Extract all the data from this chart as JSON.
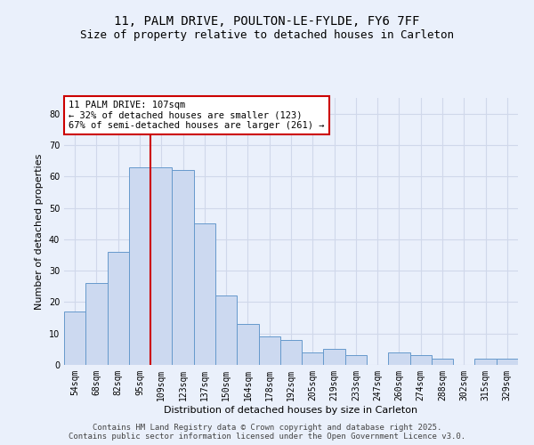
{
  "title": "11, PALM DRIVE, POULTON-LE-FYLDE, FY6 7FF",
  "subtitle": "Size of property relative to detached houses in Carleton",
  "xlabel": "Distribution of detached houses by size in Carleton",
  "ylabel": "Number of detached properties",
  "categories": [
    "54sqm",
    "68sqm",
    "82sqm",
    "95sqm",
    "109sqm",
    "123sqm",
    "137sqm",
    "150sqm",
    "164sqm",
    "178sqm",
    "192sqm",
    "205sqm",
    "219sqm",
    "233sqm",
    "247sqm",
    "260sqm",
    "274sqm",
    "288sqm",
    "302sqm",
    "315sqm",
    "329sqm"
  ],
  "values": [
    17,
    26,
    36,
    63,
    63,
    62,
    45,
    22,
    13,
    9,
    8,
    4,
    5,
    3,
    0,
    4,
    3,
    2,
    0,
    2,
    2
  ],
  "bar_color": "#ccd9f0",
  "bar_edge_color": "#6699cc",
  "vline_x_index": 4,
  "vline_color": "#cc0000",
  "annotation_line1": "11 PALM DRIVE: 107sqm",
  "annotation_line2": "← 32% of detached houses are smaller (123)",
  "annotation_line3": "67% of semi-detached houses are larger (261) →",
  "annotation_box_edgecolor": "#cc0000",
  "ylim": [
    0,
    85
  ],
  "yticks": [
    0,
    10,
    20,
    30,
    40,
    50,
    60,
    70,
    80
  ],
  "background_color": "#eaf0fb",
  "grid_color": "#d0d8ea",
  "title_fontsize": 10,
  "subtitle_fontsize": 9,
  "axis_label_fontsize": 8,
  "tick_fontsize": 7,
  "annotation_fontsize": 7.5,
  "footer_fontsize": 6.5,
  "footer_line1": "Contains HM Land Registry data © Crown copyright and database right 2025.",
  "footer_line2": "Contains public sector information licensed under the Open Government Licence v3.0."
}
